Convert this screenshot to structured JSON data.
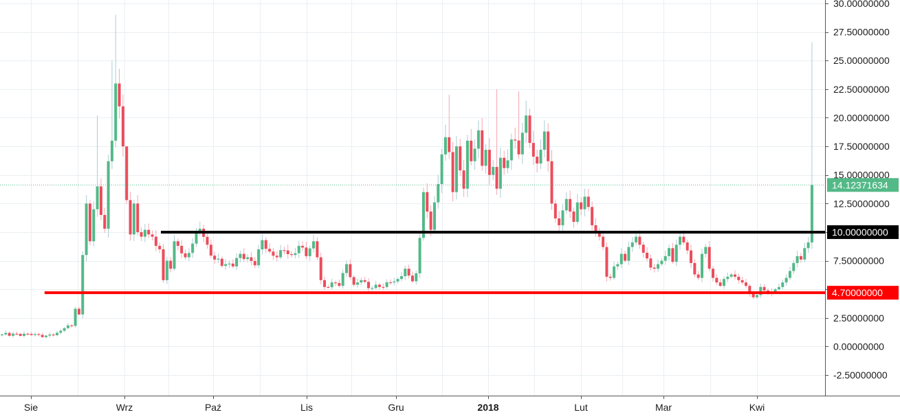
{
  "chart_data": {
    "type": "candlestick",
    "x_ticks": [
      {
        "label": "Sie",
        "bold": false
      },
      {
        "label": "Wrz",
        "bold": false
      },
      {
        "label": "Paź",
        "bold": false
      },
      {
        "label": "Lis",
        "bold": false
      },
      {
        "label": "Gru",
        "bold": false
      },
      {
        "label": "2018",
        "bold": true
      },
      {
        "label": "Lut",
        "bold": false
      },
      {
        "label": "Mar",
        "bold": false
      },
      {
        "label": "Kwi",
        "bold": false
      }
    ],
    "y_ticks": [
      "-2.50000000",
      "0.00000000",
      "2.50000000",
      "5.00000000",
      "7.50000000",
      "10.00000000",
      "12.50000000",
      "15.00000000",
      "17.50000000",
      "20.00000000",
      "22.50000000",
      "25.00000000",
      "27.50000000",
      "30.00000000"
    ],
    "ylim": [
      -4.3,
      30.3
    ],
    "grid": true,
    "up_color": "#53b987",
    "down_color": "#eb4d5c",
    "price_lines": [
      {
        "value": 14.12371634,
        "label": "14.12371634",
        "color": "#53b987",
        "style": "dotted"
      },
      {
        "value": 10.0,
        "label": "10.00000000",
        "color": "#000000",
        "style": "solid",
        "from_fraction": 0.195
      },
      {
        "value": 4.7,
        "label": "4.70000000",
        "color": "#ff0000",
        "style": "solid",
        "from_fraction": 0.054
      }
    ],
    "keypoints": [
      [
        0,
        1.05
      ],
      [
        4,
        1.1
      ],
      [
        8,
        1.0
      ],
      [
        12,
        0.95
      ],
      [
        15,
        1.2
      ],
      [
        17,
        1.6
      ],
      [
        19,
        1.8
      ],
      [
        20,
        3.3
      ],
      [
        21,
        2.8
      ],
      [
        22,
        8.0
      ],
      [
        23,
        12.5
      ],
      [
        24,
        9.2
      ],
      [
        25,
        12.0
      ],
      [
        26,
        14.0
      ],
      [
        27,
        11.5
      ],
      [
        28,
        10.3
      ],
      [
        29,
        16.2
      ],
      [
        30,
        18.0
      ],
      [
        31,
        23.0
      ],
      [
        32,
        21.0
      ],
      [
        33,
        17.5
      ],
      [
        34,
        12.8
      ],
      [
        35,
        9.8
      ],
      [
        36,
        12.5
      ],
      [
        37,
        10.0
      ],
      [
        38,
        9.6
      ],
      [
        39,
        10.2
      ],
      [
        40,
        9.8
      ],
      [
        41,
        9.6
      ],
      [
        42,
        8.8
      ],
      [
        43,
        8.5
      ],
      [
        44,
        5.8
      ],
      [
        45,
        7.5
      ],
      [
        46,
        6.8
      ],
      [
        47,
        9.2
      ],
      [
        48,
        8.8
      ],
      [
        50,
        7.8
      ],
      [
        52,
        9.0
      ],
      [
        54,
        10.3
      ],
      [
        56,
        8.9
      ],
      [
        58,
        7.6
      ],
      [
        61,
        7.2
      ],
      [
        63,
        7.0
      ],
      [
        65,
        8.1
      ],
      [
        67,
        7.8
      ],
      [
        69,
        7.1
      ],
      [
        71,
        9.3
      ],
      [
        73,
        8.3
      ],
      [
        75,
        7.8
      ],
      [
        77,
        8.4
      ],
      [
        79,
        8.0
      ],
      [
        81,
        8.8
      ],
      [
        83,
        7.9
      ],
      [
        85,
        9.2
      ],
      [
        86,
        7.8
      ],
      [
        87,
        5.8
      ],
      [
        88,
        5.2
      ],
      [
        90,
        5.6
      ],
      [
        92,
        5.3
      ],
      [
        94,
        7.2
      ],
      [
        96,
        5.4
      ],
      [
        98,
        5.8
      ],
      [
        100,
        5.1
      ],
      [
        102,
        5.4
      ],
      [
        104,
        5.2
      ],
      [
        106,
        5.6
      ],
      [
        108,
        5.9
      ],
      [
        110,
        6.8
      ],
      [
        111,
        6.2
      ],
      [
        112,
        5.7
      ],
      [
        113,
        6.4
      ],
      [
        114,
        9.5
      ],
      [
        115,
        13.5
      ],
      [
        116,
        11.8
      ],
      [
        117,
        10.2
      ],
      [
        118,
        12.6
      ],
      [
        119,
        14.2
      ],
      [
        120,
        16.8
      ],
      [
        121,
        18.3
      ],
      [
        122,
        17.0
      ],
      [
        123,
        13.5
      ],
      [
        124,
        17.5
      ],
      [
        125,
        15.4
      ],
      [
        126,
        13.8
      ],
      [
        127,
        18.0
      ],
      [
        128,
        16.2
      ],
      [
        129,
        17.3
      ],
      [
        130,
        18.9
      ],
      [
        131,
        15.8
      ],
      [
        132,
        17.2
      ],
      [
        133,
        15.0
      ],
      [
        134,
        15.7
      ],
      [
        135,
        13.8
      ],
      [
        136,
        16.5
      ],
      [
        137,
        15.6
      ],
      [
        139,
        18.1
      ],
      [
        141,
        16.8
      ],
      [
        143,
        20.2
      ],
      [
        144,
        17.8
      ],
      [
        145,
        16.6
      ],
      [
        146,
        16.0
      ],
      [
        147,
        17.2
      ],
      [
        148,
        18.8
      ],
      [
        149,
        16.2
      ],
      [
        150,
        12.5
      ],
      [
        151,
        11.2
      ],
      [
        152,
        10.6
      ],
      [
        153,
        11.9
      ],
      [
        154,
        12.9
      ],
      [
        155,
        11.8
      ],
      [
        156,
        10.9
      ],
      [
        157,
        12.6
      ],
      [
        158,
        12.0
      ],
      [
        159,
        13.1
      ],
      [
        160,
        12.2
      ],
      [
        161,
        10.6
      ],
      [
        162,
        10.1
      ],
      [
        163,
        9.6
      ],
      [
        164,
        8.7
      ],
      [
        165,
        6.1
      ],
      [
        166,
        6.0
      ],
      [
        167,
        7.0
      ],
      [
        168,
        7.2
      ],
      [
        169,
        8.1
      ],
      [
        170,
        7.5
      ],
      [
        171,
        8.7
      ],
      [
        172,
        9.1
      ],
      [
        173,
        9.6
      ],
      [
        174,
        8.9
      ],
      [
        175,
        8.2
      ],
      [
        176,
        7.7
      ],
      [
        177,
        6.9
      ],
      [
        178,
        6.8
      ],
      [
        179,
        7.2
      ],
      [
        180,
        7.5
      ],
      [
        181,
        7.9
      ],
      [
        182,
        8.6
      ],
      [
        183,
        7.4
      ],
      [
        184,
        8.9
      ],
      [
        185,
        9.6
      ],
      [
        186,
        9.1
      ],
      [
        187,
        8.4
      ],
      [
        188,
        7.3
      ],
      [
        189,
        6.3
      ],
      [
        190,
        6.0
      ],
      [
        191,
        8.1
      ],
      [
        192,
        8.7
      ],
      [
        193,
        6.8
      ],
      [
        194,
        6.0
      ],
      [
        195,
        5.6
      ],
      [
        196,
        5.3
      ],
      [
        197,
        5.9
      ],
      [
        198,
        6.1
      ],
      [
        199,
        6.3
      ],
      [
        200,
        6.1
      ],
      [
        201,
        5.8
      ],
      [
        202,
        5.6
      ],
      [
        203,
        5.3
      ],
      [
        204,
        4.6
      ],
      [
        205,
        4.3
      ],
      [
        206,
        4.5
      ],
      [
        207,
        5.2
      ],
      [
        208,
        4.9
      ],
      [
        209,
        4.6
      ],
      [
        210,
        4.8
      ],
      [
        211,
        5.0
      ],
      [
        212,
        5.2
      ],
      [
        213,
        5.6
      ],
      [
        214,
        6.0
      ],
      [
        215,
        6.6
      ],
      [
        216,
        7.3
      ],
      [
        217,
        7.9
      ],
      [
        218,
        7.6
      ],
      [
        219,
        8.6
      ],
      [
        220,
        9.1
      ],
      [
        221,
        14.12
      ]
    ],
    "spikes": [
      [
        31,
        29.0
      ],
      [
        30,
        25.0
      ],
      [
        26,
        20.2
      ],
      [
        221,
        26.6
      ],
      [
        34,
        17.2
      ],
      [
        122,
        22.0
      ],
      [
        141,
        22.3
      ],
      [
        135,
        22.5
      ],
      [
        143,
        21.5
      ]
    ]
  }
}
